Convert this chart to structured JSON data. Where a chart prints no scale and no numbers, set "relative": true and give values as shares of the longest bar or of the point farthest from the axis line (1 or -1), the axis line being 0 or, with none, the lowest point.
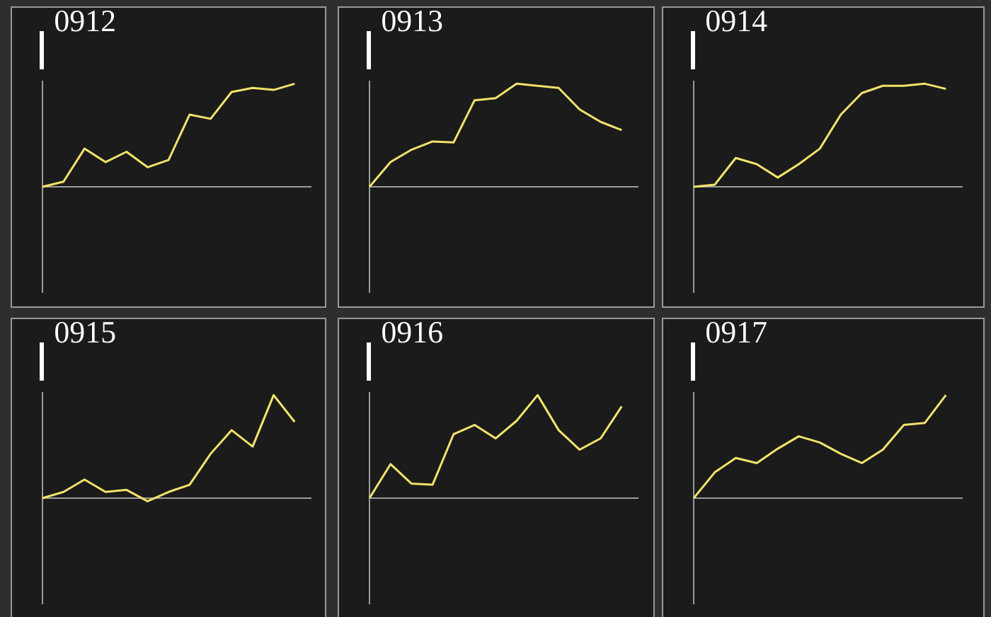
{
  "chart_data": [
    {
      "type": "line",
      "title": "0912",
      "relative": true,
      "color": "#f2e36b",
      "categories": [
        null,
        null,
        null,
        null,
        null,
        null,
        null,
        null,
        null,
        null,
        null,
        null,
        null
      ],
      "values": [
        0,
        0.05,
        0.37,
        0.24,
        0.34,
        0.19,
        0.26,
        0.7,
        0.66,
        0.92,
        0.96,
        0.94,
        1
      ]
    },
    {
      "type": "line",
      "title": "0913",
      "relative": true,
      "color": "#f2e36b",
      "categories": [
        null,
        null,
        null,
        null,
        null,
        null,
        null,
        null,
        null,
        null,
        null,
        null,
        null
      ],
      "values": [
        0,
        0.24,
        0.36,
        0.44,
        0.43,
        0.84,
        0.86,
        1,
        0.98,
        0.96,
        0.75,
        0.63,
        0.55
      ]
    },
    {
      "type": "line",
      "title": "0914",
      "relative": true,
      "color": "#f2e36b",
      "categories": [
        null,
        null,
        null,
        null,
        null,
        null,
        null,
        null,
        null,
        null,
        null,
        null,
        null
      ],
      "values": [
        0,
        0.02,
        0.28,
        0.22,
        0.09,
        0.22,
        0.37,
        0.7,
        0.91,
        0.98,
        0.98,
        1,
        0.95
      ]
    },
    {
      "type": "line",
      "title": "0915",
      "relative": true,
      "color": "#f2e36b",
      "categories": [
        null,
        null,
        null,
        null,
        null,
        null,
        null,
        null,
        null,
        null,
        null,
        null,
        null
      ],
      "values": [
        0,
        0.06,
        0.18,
        0.06,
        0.08,
        -0.03,
        0.06,
        0.13,
        0.43,
        0.66,
        0.5,
        1,
        0.74
      ]
    },
    {
      "type": "line",
      "title": "0916",
      "relative": true,
      "color": "#f2e36b",
      "categories": [
        null,
        null,
        null,
        null,
        null,
        null,
        null,
        null,
        null,
        null,
        null,
        null,
        null
      ],
      "values": [
        0,
        0.33,
        0.14,
        0.13,
        0.62,
        0.71,
        0.58,
        0.75,
        1,
        0.66,
        0.47,
        0.58,
        0.89
      ]
    },
    {
      "type": "line",
      "title": "0917",
      "relative": true,
      "color": "#f2e36b",
      "categories": [
        null,
        null,
        null,
        null,
        null,
        null,
        null,
        null,
        null,
        null,
        null,
        null,
        null
      ],
      "values": [
        0,
        0.25,
        0.39,
        0.34,
        0.48,
        0.6,
        0.54,
        0.43,
        0.34,
        0.47,
        0.71,
        0.73,
        1
      ]
    }
  ]
}
